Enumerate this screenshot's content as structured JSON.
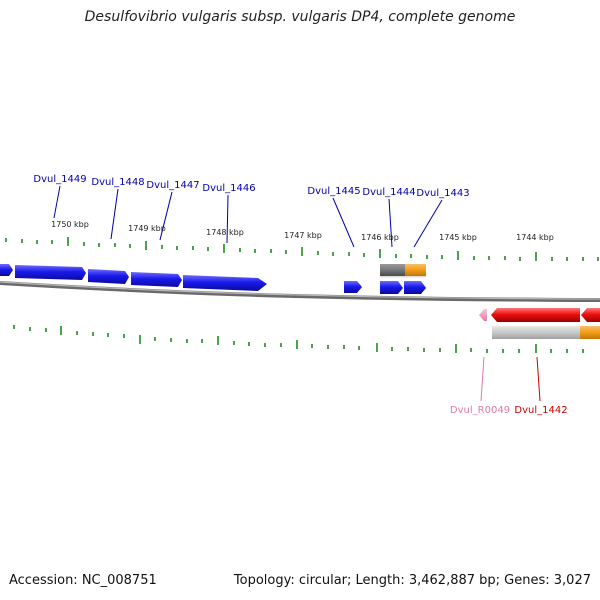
{
  "title": "Desulfovibrio vulgaris subsp. vulgaris DP4, complete genome",
  "footer": {
    "accession": "Accession: NC_008751",
    "summary": "Topology: circular; Length: 3,462,887 bp; Genes: 3,027"
  },
  "colors": {
    "gene_forward": "#1a1aee",
    "gene_reverse": "#ee1111",
    "rna": "#f49ac1",
    "backbone": "#888888",
    "tick": "#1e8c1e",
    "gc_positive": "#f39c12",
    "gc_gray": "#7a7a7a",
    "label_forward": "#0000aa",
    "label_reverse": "#cc0000",
    "label_rna": "#e07aa8"
  },
  "scale_labels": [
    "1750 kbp",
    "1749 kbp",
    "1748 kbp",
    "1747 kbp",
    "1746 kbp",
    "1745 kbp",
    "1744 kbp"
  ],
  "gene_labels": [
    {
      "text": "Dvul_1449",
      "kind": "forward"
    },
    {
      "text": "Dvul_1448",
      "kind": "forward"
    },
    {
      "text": "Dvul_1447",
      "kind": "forward"
    },
    {
      "text": "Dvul_1446",
      "kind": "forward"
    },
    {
      "text": "Dvul_1445",
      "kind": "forward"
    },
    {
      "text": "Dvul_1444",
      "kind": "forward"
    },
    {
      "text": "Dvul_1443",
      "kind": "forward"
    },
    {
      "text": "Dvul_R0049",
      "kind": "rna"
    },
    {
      "text": "Dvul_1442",
      "kind": "reverse"
    }
  ]
}
